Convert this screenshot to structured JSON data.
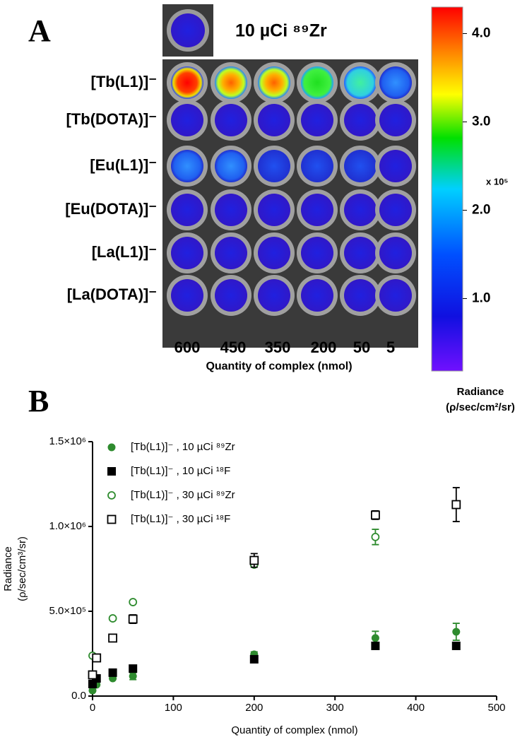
{
  "panel_a": {
    "label": "A",
    "header": "10 µCi ⁸⁹Zr",
    "rows": [
      "[Tb(L1)]⁻",
      "[Tb(DOTA)]⁻",
      "[Eu(L1)]⁻",
      "[Eu(DOTA)]⁻",
      "[La(L1)]⁻",
      "[La(DOTA)]⁻"
    ],
    "columns": [
      "600",
      "450",
      "350",
      "200",
      "50",
      "5"
    ],
    "x_label": "Quantity of complex (nmol)",
    "colorbar": {
      "clim": [
        0.18,
        4.3
      ],
      "ticks": [
        {
          "value": 4,
          "label": "4.0"
        },
        {
          "value": 3,
          "label": "3.0"
        },
        {
          "value": 2,
          "label": "2.0"
        },
        {
          "value": 1,
          "label": "1.0"
        }
      ],
      "multiplier": "x 10⁵",
      "title": [
        "Radiance",
        "(ρ/sec/cm²/sr)"
      ]
    }
  },
  "chart_data": {
    "type": "scatter",
    "panel_label": "B",
    "x_label": "Quantity of complex (nmol)",
    "y_label": [
      "Radiance",
      "(ρ/sec/cm³/sr)"
    ],
    "xlim": [
      0,
      500
    ],
    "ylim": [
      0,
      1500000
    ],
    "xticks": [
      0,
      100,
      200,
      300,
      400,
      500
    ],
    "yticks": [
      {
        "value": 0,
        "label": "0.0"
      },
      {
        "value": 500000,
        "label": "5.0×10⁵"
      },
      {
        "value": 1000000,
        "label": "1.0×10⁶"
      },
      {
        "value": 1500000,
        "label": "1.5×10⁶"
      }
    ],
    "series": [
      {
        "name": "[Tb(L1)]⁻ , 10 µCi ⁸⁹Zr",
        "color": "#2e8b2e",
        "marker": "circle",
        "filled": true,
        "x": [
          0,
          5,
          25,
          50,
          200,
          350,
          450
        ],
        "values": [
          33000,
          67000,
          104000,
          117000,
          246000,
          342000,
          379000
        ],
        "errors": [
          null,
          null,
          null,
          20000,
          15000,
          40000,
          50000
        ]
      },
      {
        "name": "[Tb(L1)]⁻ , 10 µCi ¹⁸F",
        "color": "#000000",
        "marker": "square",
        "filled": true,
        "x": [
          0,
          5,
          25,
          50,
          200,
          350,
          450
        ],
        "values": [
          71000,
          104000,
          138000,
          162000,
          217000,
          296000,
          296000
        ],
        "errors": [
          null,
          null,
          null,
          null,
          null,
          null,
          null
        ]
      },
      {
        "name": "[Tb(L1)]⁻ , 30 µCi ⁸⁹Zr",
        "color": "#2e8b2e",
        "marker": "circle",
        "filled": false,
        "x": [
          0,
          5,
          25,
          50,
          200,
          350
        ],
        "values": [
          238000,
          225000,
          458000,
          554000,
          775000,
          938000
        ],
        "errors": [
          null,
          null,
          null,
          null,
          null,
          45000
        ]
      },
      {
        "name": "[Tb(L1)]⁻ , 30 µCi ¹⁸F",
        "color": "#000000",
        "marker": "square",
        "filled": false,
        "x": [
          0,
          5,
          25,
          50,
          200,
          350,
          450
        ],
        "values": [
          125000,
          225000,
          342000,
          454000,
          800000,
          1067000,
          1129000
        ],
        "errors": [
          null,
          null,
          null,
          25000,
          40000,
          25000,
          100000
        ]
      }
    ]
  }
}
